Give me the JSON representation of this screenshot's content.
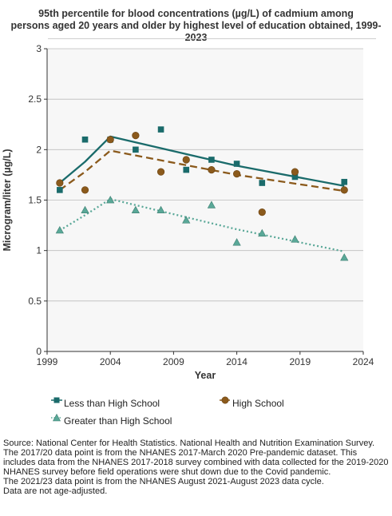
{
  "chart_data": {
    "type": "line",
    "title": "95th percentile for blood concentrations (µg/L) of cadmium among persons aged 20 years and older by highest level of education obtained, 1999-2023",
    "title_lines": [
      "95th percentile for blood concentrations (µg/L) of cadmium among",
      "persons aged 20 years and older by highest level of education obtained, 1999-2023"
    ],
    "xlabel": "Year",
    "ylabel": "Microgram/liter (µg/L)",
    "xlim": [
      1999,
      2024
    ],
    "ylim": [
      0,
      3
    ],
    "xticks": [
      1999,
      2004,
      2009,
      2014,
      2019,
      2024
    ],
    "yticks": [
      0,
      0.5,
      1,
      1.5,
      2,
      2.5,
      3
    ],
    "xtick_labels": [
      "1999",
      "2004",
      "2009",
      "2014",
      "2019",
      "2024"
    ],
    "ytick_labels": [
      "0",
      "0.5",
      "1",
      "1.5",
      "2",
      "2.5",
      "3"
    ],
    "grid": true,
    "legend_position": "bottom",
    "series": [
      {
        "name": "Less than High School",
        "marker": "square",
        "color": "#1a6b6b",
        "line_style": "solid",
        "points": [
          [
            2000,
            1.6
          ],
          [
            2002,
            2.1
          ],
          [
            2004,
            2.1
          ],
          [
            2006,
            2.0
          ],
          [
            2008,
            2.2
          ],
          [
            2010,
            1.8
          ],
          [
            2012,
            1.9
          ],
          [
            2014,
            1.86
          ],
          [
            2016,
            1.67
          ],
          [
            2018.6,
            1.73
          ],
          [
            2022.5,
            1.68
          ]
        ],
        "trend": [
          [
            2000,
            1.67
          ],
          [
            2002,
            1.88
          ],
          [
            2004,
            2.13
          ],
          [
            2014,
            1.84
          ],
          [
            2022.5,
            1.64
          ]
        ]
      },
      {
        "name": "High School",
        "marker": "circle",
        "color": "#8b5a1c",
        "line_style": "dashed",
        "points": [
          [
            2000,
            1.67
          ],
          [
            2002,
            1.6
          ],
          [
            2004,
            2.1
          ],
          [
            2006,
            2.14
          ],
          [
            2008,
            1.78
          ],
          [
            2010,
            1.9
          ],
          [
            2012,
            1.8
          ],
          [
            2014,
            1.76
          ],
          [
            2016,
            1.38
          ],
          [
            2018.6,
            1.78
          ],
          [
            2022.5,
            1.6
          ]
        ],
        "trend": [
          [
            2000,
            1.6
          ],
          [
            2002,
            1.78
          ],
          [
            2004,
            1.99
          ],
          [
            2014,
            1.75
          ],
          [
            2022.5,
            1.59
          ]
        ]
      },
      {
        "name": "Greater than High School",
        "marker": "triangle",
        "color": "#5aa898",
        "line_style": "dotted",
        "points": [
          [
            2000,
            1.2
          ],
          [
            2002,
            1.4
          ],
          [
            2004,
            1.5
          ],
          [
            2006,
            1.4
          ],
          [
            2008,
            1.4
          ],
          [
            2010,
            1.3
          ],
          [
            2012,
            1.45
          ],
          [
            2014,
            1.08
          ],
          [
            2016,
            1.17
          ],
          [
            2018.6,
            1.11
          ],
          [
            2022.5,
            0.93
          ]
        ],
        "trend": [
          [
            2000,
            1.2
          ],
          [
            2002,
            1.35
          ],
          [
            2004,
            1.51
          ],
          [
            2014,
            1.21
          ],
          [
            2022.5,
            0.99
          ]
        ]
      }
    ]
  },
  "footnotes": [
    "Source: National Center for Health Statistics. National Health and Nutrition Examination Survey.",
    "The 2017/20 data point is from the NHANES 2017-March 2020 Pre-pandemic dataset. This includes data from the NHANES 2017-2018 survey combined with data collected for the 2019-2020 NHANES survey before field operations were shut down due to the Covid pandemic.",
    "The 2021/23 data point is from the NHANES August 2021-August 2023 data cycle.",
    "Data are not age-adjusted."
  ],
  "colors": {
    "plot_background": "#f7f7f7",
    "grid": "#bdbdbd",
    "axis": "#333333"
  }
}
